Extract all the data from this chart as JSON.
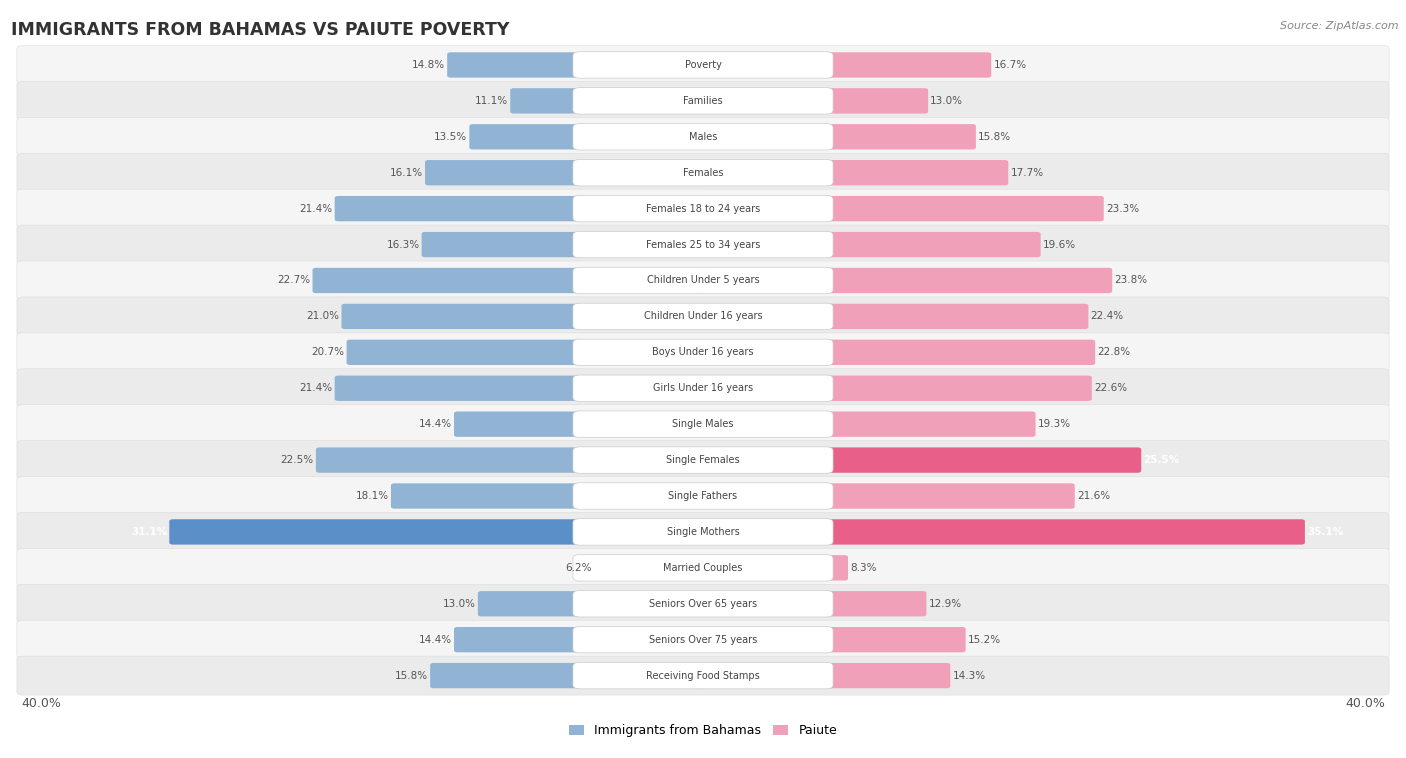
{
  "title": "IMMIGRANTS FROM BAHAMAS VS PAIUTE POVERTY",
  "source": "Source: ZipAtlas.com",
  "categories": [
    "Poverty",
    "Families",
    "Males",
    "Females",
    "Females 18 to 24 years",
    "Females 25 to 34 years",
    "Children Under 5 years",
    "Children Under 16 years",
    "Boys Under 16 years",
    "Girls Under 16 years",
    "Single Males",
    "Single Females",
    "Single Fathers",
    "Single Mothers",
    "Married Couples",
    "Seniors Over 65 years",
    "Seniors Over 75 years",
    "Receiving Food Stamps"
  ],
  "bahamas_values": [
    14.8,
    11.1,
    13.5,
    16.1,
    21.4,
    16.3,
    22.7,
    21.0,
    20.7,
    21.4,
    14.4,
    22.5,
    18.1,
    31.1,
    6.2,
    13.0,
    14.4,
    15.8
  ],
  "paiute_values": [
    16.7,
    13.0,
    15.8,
    17.7,
    23.3,
    19.6,
    23.8,
    22.4,
    22.8,
    22.6,
    19.3,
    25.5,
    21.6,
    35.1,
    8.3,
    12.9,
    15.2,
    14.3
  ],
  "max_val": 40.0,
  "bahamas_color": "#92b4d4",
  "paiute_color": "#f0a0b8",
  "bahamas_highlight_color": "#5b8fc7",
  "paiute_highlight_color": "#e8608a",
  "background_color": "#ffffff",
  "row_colors": [
    "#f5f5f5",
    "#ebebeb"
  ],
  "highlight_rows": [
    13
  ],
  "highlight_paiute_rows": [
    11
  ]
}
